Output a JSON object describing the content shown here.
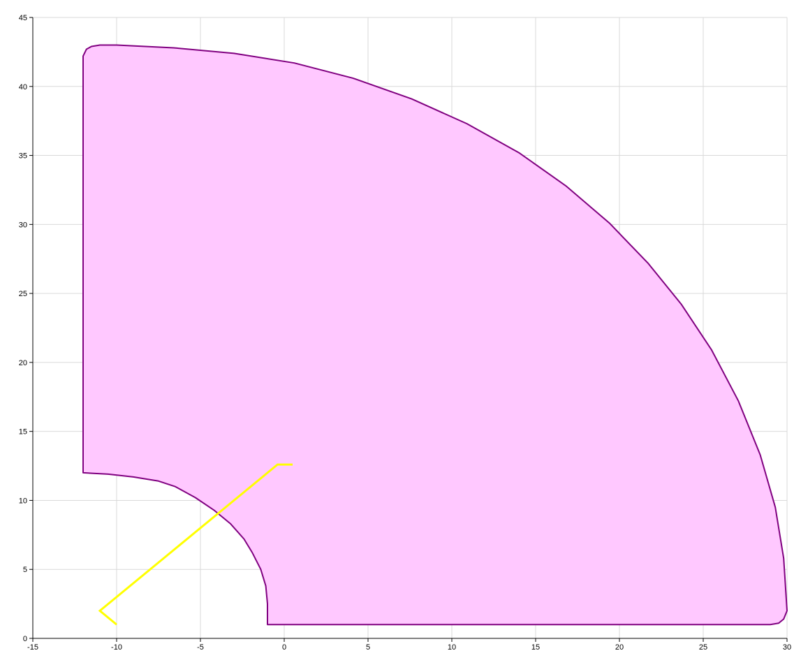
{
  "chart_data": {
    "type": "line",
    "title": "",
    "xlabel": "",
    "ylabel": "",
    "xlim": [
      -15,
      30
    ],
    "ylim": [
      0,
      45
    ],
    "grid": true,
    "x_ticks": [
      -15,
      -10,
      -5,
      0,
      5,
      10,
      15,
      20,
      25,
      30
    ],
    "y_ticks": [
      0,
      5,
      10,
      15,
      20,
      25,
      30,
      35,
      40,
      45
    ],
    "colors": {
      "region_fill": "#ffc8ff",
      "region_stroke": "#800080",
      "path_stroke": "#ffff00",
      "grid": "#d9d9d9",
      "axis": "#000000"
    },
    "series": [
      {
        "kind": "filled-region",
        "points": [
          [
            -12,
            12
          ],
          [
            -10.5,
            11.9
          ],
          [
            -9,
            11.7
          ],
          [
            -7.5,
            11.4
          ],
          [
            -6.5,
            11.0
          ],
          [
            -5.3,
            10.2
          ],
          [
            -4.2,
            9.3
          ],
          [
            -3.2,
            8.3
          ],
          [
            -2.4,
            7.2
          ],
          [
            -1.9,
            6.2
          ],
          [
            -1.4,
            5.0
          ],
          [
            -1.1,
            3.8
          ],
          [
            -1.0,
            2.5
          ],
          [
            -1.0,
            1
          ],
          [
            29,
            1
          ],
          [
            29.5,
            1.1
          ],
          [
            29.8,
            1.4
          ],
          [
            30,
            2.0
          ],
          [
            29.8,
            5.8
          ],
          [
            29.3,
            9.5
          ],
          [
            28.4,
            13.3
          ],
          [
            27.1,
            17.2
          ],
          [
            25.5,
            20.9
          ],
          [
            23.7,
            24.2
          ],
          [
            21.7,
            27.2
          ],
          [
            19.4,
            30.1
          ],
          [
            16.8,
            32.8
          ],
          [
            14.0,
            35.2
          ],
          [
            10.9,
            37.3
          ],
          [
            7.6,
            39.1
          ],
          [
            4.1,
            40.6
          ],
          [
            0.6,
            41.7
          ],
          [
            -3.0,
            42.4
          ],
          [
            -6.6,
            42.8
          ],
          [
            -10.0,
            43.0
          ],
          [
            -11,
            43
          ],
          [
            -11.5,
            42.9
          ],
          [
            -11.8,
            42.7
          ],
          [
            -12,
            42.2
          ]
        ]
      },
      {
        "kind": "polyline",
        "points": [
          [
            -10,
            1
          ],
          [
            -11,
            2
          ],
          [
            -0.4,
            12.6
          ],
          [
            0.5,
            12.6
          ]
        ]
      }
    ]
  }
}
